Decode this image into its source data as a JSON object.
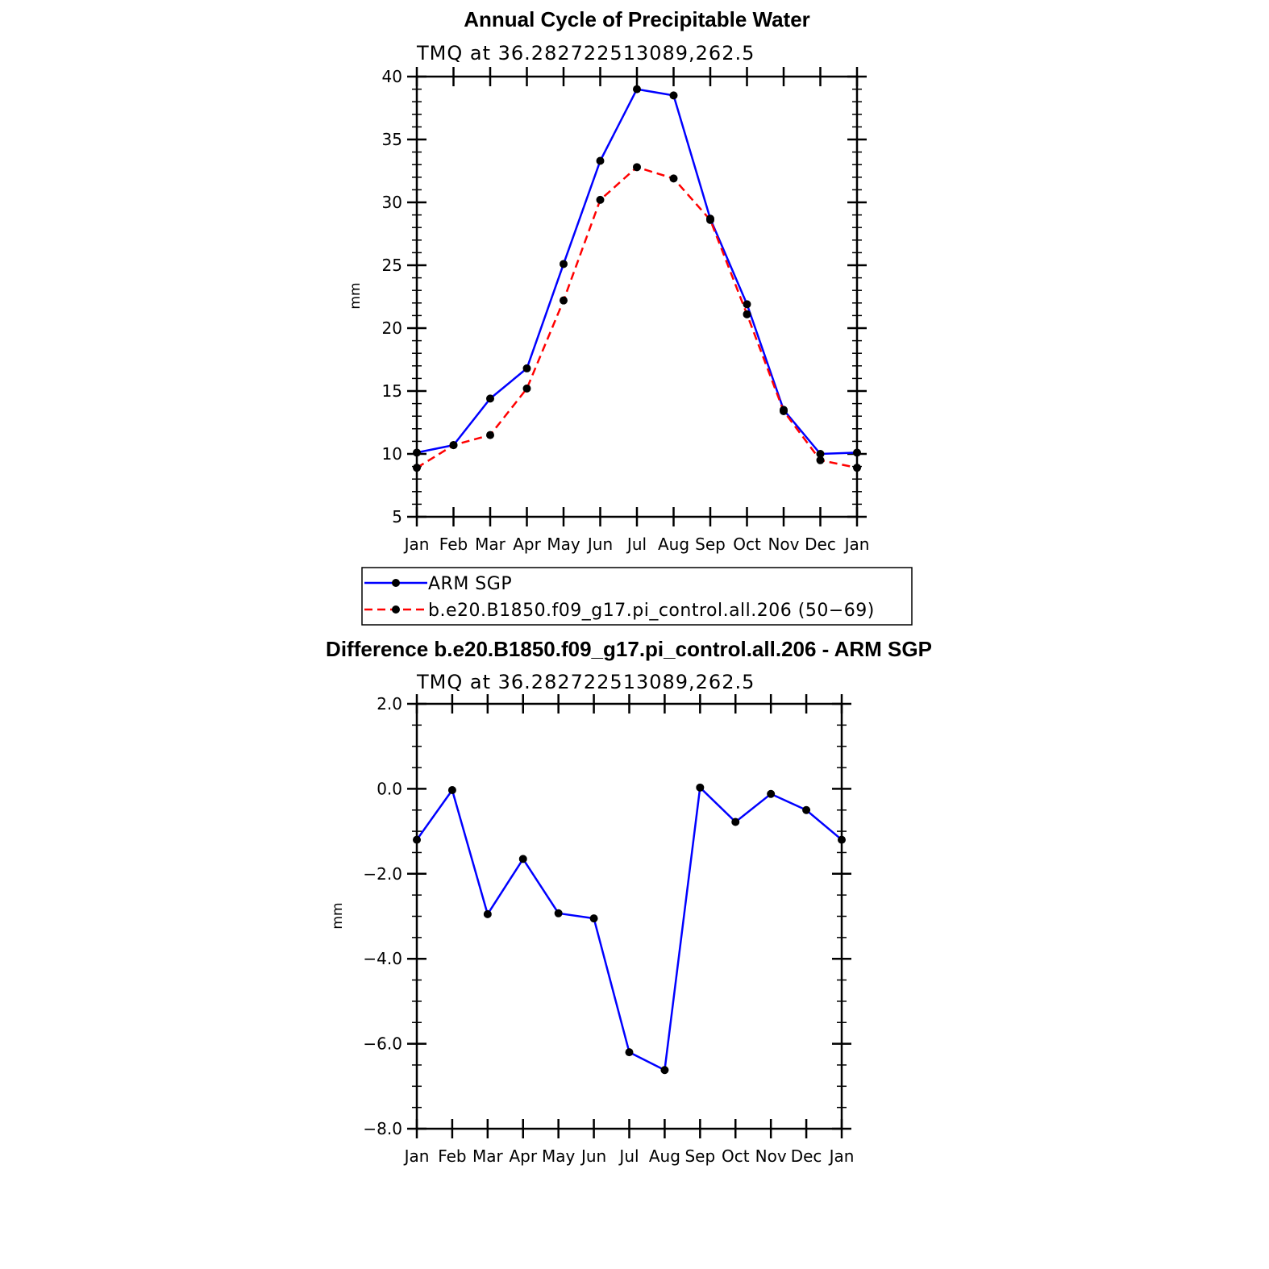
{
  "colors": {
    "obs": "#0000ff",
    "model": "#ff0000",
    "marker": "#000000"
  },
  "chart_data": [
    {
      "type": "line",
      "title": "Annual Cycle of Precipitable Water",
      "subtitle": "TMQ at 36.282722513089,262.5",
      "xlabel": "",
      "ylabel": "mm",
      "categories": [
        "Jan",
        "Feb",
        "Mar",
        "Apr",
        "May",
        "Jun",
        "Jul",
        "Aug",
        "Sep",
        "Oct",
        "Nov",
        "Dec",
        "Jan"
      ],
      "ylim": [
        5,
        40
      ],
      "yticks": [
        5,
        10,
        15,
        20,
        25,
        30,
        35,
        40
      ],
      "ytick_labels": [
        "5",
        "10",
        "15",
        "20",
        "25",
        "30",
        "35",
        "40"
      ],
      "series": [
        {
          "name": "ARM SGP",
          "style": "solid",
          "color": "#0000ff",
          "values": [
            10.1,
            10.7,
            14.4,
            16.8,
            25.1,
            33.3,
            39.0,
            38.5,
            28.7,
            21.9,
            13.5,
            10.0,
            10.1
          ]
        },
        {
          "name": "b.e20.B1850.f09_g17.pi_control.all.206 (50−69)",
          "style": "dashed",
          "color": "#ff0000",
          "values": [
            8.9,
            10.7,
            11.5,
            15.2,
            22.2,
            30.2,
            32.8,
            31.9,
            28.6,
            21.1,
            13.4,
            9.5,
            8.9
          ]
        }
      ],
      "legend": [
        "ARM SGP",
        "b.e20.B1850.f09_g17.pi_control.all.206 (50−69)"
      ]
    },
    {
      "type": "line",
      "title": "Difference b.e20.B1850.f09_g17.pi_control.all.206 - ARM SGP",
      "subtitle": "TMQ at 36.282722513089,262.5",
      "xlabel": "",
      "ylabel": "mm",
      "categories": [
        "Jan",
        "Feb",
        "Mar",
        "Apr",
        "May",
        "Jun",
        "Jul",
        "Aug",
        "Sep",
        "Oct",
        "Nov",
        "Dec",
        "Jan"
      ],
      "ylim": [
        -8,
        2
      ],
      "yticks": [
        -8,
        -6,
        -4,
        -2,
        0,
        2
      ],
      "ytick_labels": [
        "−8.0",
        "−6.0",
        "−4.0",
        "−2.0",
        "0.0",
        "2.0"
      ],
      "series": [
        {
          "name": "Difference",
          "style": "solid",
          "color": "#0000ff",
          "values": [
            -1.2,
            -0.03,
            -2.95,
            -1.65,
            -2.93,
            -3.05,
            -6.2,
            -6.62,
            0.03,
            -0.78,
            -0.12,
            -0.5,
            -1.2
          ]
        }
      ]
    }
  ]
}
